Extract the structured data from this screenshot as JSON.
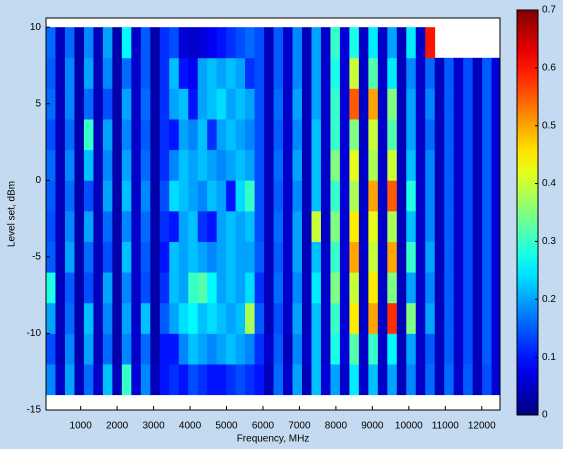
{
  "chart_data": {
    "type": "contour",
    "xlabel": "Frequency, MHz",
    "ylabel": "Level set, dBm",
    "xlim": [
      50,
      12500
    ],
    "ylim": [
      -15,
      10.6
    ],
    "xticks": [
      1000,
      2000,
      3000,
      4000,
      5000,
      6000,
      7000,
      8000,
      9000,
      10000,
      11000,
      12000
    ],
    "yticks": [
      -15,
      -10,
      -5,
      0,
      5,
      10
    ],
    "zlim": [
      0,
      0.7
    ],
    "zticks": [
      0,
      0.1,
      0.2,
      0.3,
      0.4,
      0.5,
      0.6,
      0.7
    ],
    "colormap": "jet",
    "x": [
      180,
      440,
      700,
      960,
      1220,
      1480,
      1740,
      2000,
      2260,
      2520,
      2780,
      3040,
      3300,
      3560,
      3820,
      4080,
      4340,
      4600,
      4860,
      5120,
      5380,
      5640,
      5900,
      6160,
      6420,
      6680,
      6940,
      7200,
      7460,
      7720,
      7980,
      8240,
      8500,
      8760,
      9020,
      9280,
      9540,
      9800,
      10060,
      10320,
      10580,
      10840,
      11100,
      11360,
      11620,
      11880,
      12140,
      12400
    ],
    "y": [
      -13,
      -11,
      -9,
      -7,
      -5,
      -3,
      -1,
      1,
      3,
      5,
      7,
      9
    ],
    "z": [
      [
        0.18,
        0.05,
        0.2,
        0.04,
        0.16,
        0.05,
        0.22,
        0.04,
        0.3,
        0.06,
        0.18,
        0.04,
        0.1,
        0.12,
        0.1,
        0.14,
        0.12,
        0.1,
        0.1,
        0.12,
        0.14,
        0.12,
        0.1,
        0.04,
        0.16,
        0.05,
        0.2,
        0.04,
        0.22,
        0.06,
        0.2,
        0.05,
        0.25,
        0.05,
        0.22,
        0.05,
        0.2,
        0.04,
        0.18,
        0.05,
        0.16,
        0.04,
        0.16,
        0.05,
        0.15,
        0.04,
        0.14,
        0.06
      ],
      [
        0.14,
        0.04,
        0.18,
        0.03,
        0.2,
        0.04,
        0.16,
        0.03,
        0.18,
        0.05,
        0.16,
        0.03,
        0.1,
        0.1,
        0.18,
        0.22,
        0.2,
        0.18,
        0.2,
        0.22,
        0.2,
        0.18,
        0.12,
        0.05,
        0.15,
        0.04,
        0.18,
        0.05,
        0.22,
        0.05,
        0.28,
        0.06,
        0.32,
        0.05,
        0.3,
        0.05,
        0.26,
        0.04,
        0.2,
        0.05,
        0.15,
        0.04,
        0.15,
        0.05,
        0.14,
        0.04,
        0.15,
        0.06
      ],
      [
        0.2,
        0.04,
        0.16,
        0.03,
        0.22,
        0.04,
        0.18,
        0.03,
        0.2,
        0.05,
        0.22,
        0.03,
        0.15,
        0.2,
        0.24,
        0.26,
        0.22,
        0.24,
        0.22,
        0.2,
        0.22,
        0.38,
        0.15,
        0.04,
        0.14,
        0.05,
        0.2,
        0.04,
        0.22,
        0.05,
        0.3,
        0.06,
        0.45,
        0.05,
        0.5,
        0.05,
        0.58,
        0.04,
        0.35,
        0.05,
        0.2,
        0.04,
        0.15,
        0.05,
        0.14,
        0.04,
        0.15,
        0.06
      ],
      [
        0.28,
        0.04,
        0.15,
        0.03,
        0.14,
        0.04,
        0.2,
        0.03,
        0.18,
        0.05,
        0.14,
        0.03,
        0.12,
        0.22,
        0.2,
        0.3,
        0.32,
        0.26,
        0.2,
        0.22,
        0.2,
        0.24,
        0.12,
        0.04,
        0.16,
        0.05,
        0.18,
        0.04,
        0.25,
        0.05,
        0.35,
        0.06,
        0.4,
        0.05,
        0.45,
        0.05,
        0.35,
        0.04,
        0.2,
        0.05,
        0.18,
        0.04,
        0.15,
        0.05,
        0.14,
        0.04,
        0.15,
        0.06
      ],
      [
        0.15,
        0.04,
        0.2,
        0.03,
        0.16,
        0.04,
        0.14,
        0.03,
        0.22,
        0.05,
        0.15,
        0.03,
        0.1,
        0.22,
        0.2,
        0.22,
        0.2,
        0.18,
        0.2,
        0.22,
        0.2,
        0.2,
        0.15,
        0.04,
        0.15,
        0.05,
        0.2,
        0.04,
        0.22,
        0.05,
        0.3,
        0.06,
        0.5,
        0.05,
        0.4,
        0.05,
        0.5,
        0.04,
        0.3,
        0.05,
        0.2,
        0.04,
        0.15,
        0.05,
        0.14,
        0.04,
        0.15,
        0.06
      ],
      [
        0.14,
        0.04,
        0.18,
        0.03,
        0.2,
        0.04,
        0.16,
        0.03,
        0.18,
        0.05,
        0.16,
        0.03,
        0.12,
        0.1,
        0.2,
        0.22,
        0.12,
        0.1,
        0.2,
        0.22,
        0.2,
        0.22,
        0.14,
        0.04,
        0.16,
        0.05,
        0.2,
        0.04,
        0.4,
        0.05,
        0.35,
        0.06,
        0.45,
        0.05,
        0.42,
        0.05,
        0.38,
        0.04,
        0.22,
        0.05,
        0.18,
        0.04,
        0.15,
        0.05,
        0.14,
        0.04,
        0.15,
        0.06
      ],
      [
        0.15,
        0.04,
        0.16,
        0.03,
        0.14,
        0.04,
        0.2,
        0.03,
        0.22,
        0.05,
        0.18,
        0.03,
        0.14,
        0.24,
        0.22,
        0.2,
        0.18,
        0.22,
        0.2,
        0.1,
        0.24,
        0.3,
        0.14,
        0.04,
        0.15,
        0.05,
        0.18,
        0.04,
        0.22,
        0.05,
        0.3,
        0.06,
        0.38,
        0.05,
        0.5,
        0.05,
        0.55,
        0.04,
        0.28,
        0.05,
        0.18,
        0.04,
        0.15,
        0.05,
        0.14,
        0.04,
        0.15,
        0.06
      ],
      [
        0.16,
        0.04,
        0.18,
        0.03,
        0.22,
        0.04,
        0.18,
        0.03,
        0.2,
        0.05,
        0.16,
        0.03,
        0.12,
        0.18,
        0.22,
        0.2,
        0.22,
        0.2,
        0.18,
        0.2,
        0.22,
        0.2,
        0.14,
        0.04,
        0.16,
        0.05,
        0.2,
        0.04,
        0.22,
        0.05,
        0.35,
        0.06,
        0.42,
        0.05,
        0.38,
        0.05,
        0.4,
        0.04,
        0.22,
        0.05,
        0.18,
        0.04,
        0.15,
        0.05,
        0.14,
        0.04,
        0.15,
        0.06
      ],
      [
        0.14,
        0.04,
        0.16,
        0.03,
        0.3,
        0.04,
        0.2,
        0.03,
        0.18,
        0.05,
        0.15,
        0.03,
        0.12,
        0.1,
        0.2,
        0.18,
        0.22,
        0.12,
        0.2,
        0.22,
        0.2,
        0.18,
        0.14,
        0.04,
        0.15,
        0.05,
        0.18,
        0.04,
        0.22,
        0.05,
        0.3,
        0.06,
        0.35,
        0.05,
        0.4,
        0.05,
        0.32,
        0.04,
        0.2,
        0.05,
        0.16,
        0.04,
        0.15,
        0.05,
        0.14,
        0.04,
        0.15,
        0.06
      ],
      [
        0.16,
        0.04,
        0.18,
        0.03,
        0.16,
        0.04,
        0.14,
        0.03,
        0.2,
        0.05,
        0.16,
        0.03,
        0.12,
        0.2,
        0.22,
        0.1,
        0.2,
        0.22,
        0.24,
        0.2,
        0.22,
        0.2,
        0.14,
        0.04,
        0.16,
        0.05,
        0.2,
        0.04,
        0.2,
        0.05,
        0.3,
        0.06,
        0.55,
        0.05,
        0.5,
        0.05,
        0.35,
        0.04,
        0.2,
        0.05,
        0.18,
        0.04,
        0.15,
        0.05,
        0.14,
        0.04,
        0.15,
        0.06
      ],
      [
        0.15,
        0.04,
        0.18,
        0.03,
        0.2,
        0.04,
        0.18,
        0.03,
        0.16,
        0.05,
        0.15,
        0.03,
        0.12,
        0.22,
        0.1,
        0.08,
        0.2,
        0.22,
        0.2,
        0.22,
        0.2,
        0.12,
        0.14,
        0.04,
        0.15,
        0.05,
        0.18,
        0.04,
        0.2,
        0.05,
        0.28,
        0.06,
        0.4,
        0.05,
        0.32,
        0.05,
        0.25,
        0.04,
        0.18,
        0.05,
        0.16,
        0.04,
        0.15,
        0.05,
        0.14,
        0.04,
        0.15,
        0.06
      ],
      [
        0.16,
        0.04,
        0.16,
        0.03,
        0.18,
        0.04,
        0.2,
        0.03,
        0.26,
        0.05,
        0.15,
        0.03,
        0.12,
        0.14,
        0.06,
        0.05,
        0.06,
        0.08,
        0.1,
        0.12,
        0.14,
        0.16,
        0.14,
        0.04,
        0.15,
        0.05,
        0.18,
        0.04,
        0.2,
        0.05,
        0.3,
        0.06,
        0.28,
        0.05,
        0.25,
        0.05,
        0.2,
        0.04,
        0.25,
        0.05,
        0.6,
        null,
        null,
        null,
        null,
        null,
        null,
        null
      ]
    ]
  }
}
